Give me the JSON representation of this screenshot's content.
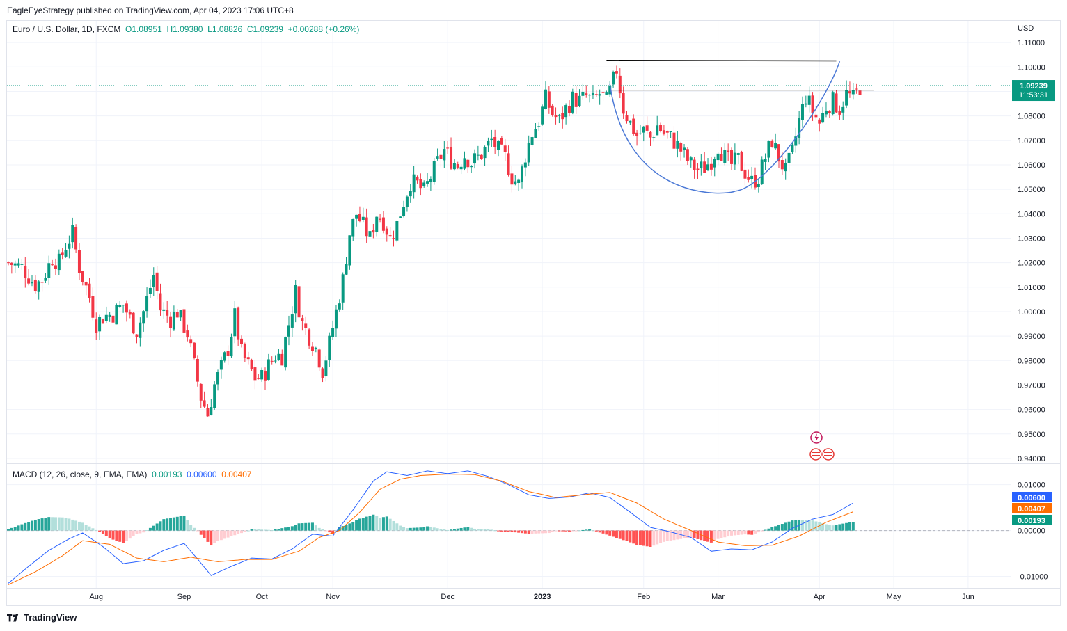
{
  "publisher": "EagleEyeStrategy published on TradingView.com, Apr 04, 2023 17:06 UTC+8",
  "legend": {
    "symbol": "Euro / U.S. Dollar, 1D, FXCM",
    "open": "O1.08951",
    "high": "H1.09380",
    "low": "L1.08826",
    "close": "C1.09239",
    "change": "+0.00288 (+0.26%)"
  },
  "currency": "USD",
  "price_badge": {
    "price": "1.09239",
    "countdown": "11:53:31",
    "color": "#089981"
  },
  "macd_legend": {
    "title": "MACD (12, 26, close, 9, EMA, EMA)",
    "hist": "0.00193",
    "macd": "0.00600",
    "signal": "0.00407"
  },
  "macd_badges": [
    {
      "value": "0.00600",
      "color": "#2962ff"
    },
    {
      "value": "0.00407",
      "color": "#ff6d00"
    },
    {
      "value": "0.00193",
      "color": "#089981"
    }
  ],
  "footer": "TradingView",
  "colors": {
    "up": "#089981",
    "down": "#f23645",
    "macd": "#2962ff",
    "signal": "#ff6d00",
    "hist_up": "#26a69a",
    "hist_up_light": "#b2dfdb",
    "hist_down": "#ff5252",
    "hist_down_light": "#ffcdd2",
    "grid": "#f0f3fa"
  },
  "chart_data": {
    "type": "candlestick",
    "price_axis": {
      "ticks": [
        "1.11000",
        "1.10000",
        "1.09000",
        "1.08000",
        "1.07000",
        "1.06000",
        "1.05000",
        "1.04000",
        "1.03000",
        "1.02000",
        "1.01000",
        "1.00000",
        "0.99000",
        "0.98000",
        "0.97000",
        "0.96000",
        "0.95000",
        "0.94000"
      ],
      "range": [
        0.938,
        1.116
      ]
    },
    "macd_axis": {
      "ticks": [
        "0.01000",
        "0.00000",
        "-0.01000"
      ],
      "range": [
        -0.0125,
        0.0145
      ]
    },
    "time_axis": [
      "Aug",
      "Sep",
      "Oct",
      "Nov",
      "Dec",
      "2023",
      "Feb",
      "Mar",
      "Apr",
      "May",
      "Jun"
    ],
    "price_path": [
      [
        0,
        1.02
      ],
      [
        4,
        1.018
      ],
      [
        8,
        1.011
      ],
      [
        10,
        1.013
      ],
      [
        13,
        1.022
      ],
      [
        15,
        1.02
      ],
      [
        17,
        1.027
      ],
      [
        19,
        1.032
      ],
      [
        21,
        1.018
      ],
      [
        24,
        1.006
      ],
      [
        26,
        0.995
      ],
      [
        28,
        0.998
      ],
      [
        31,
        0.999
      ],
      [
        34,
        1.003
      ],
      [
        36,
        0.997
      ],
      [
        38,
        0.992
      ],
      [
        40,
        1.0
      ],
      [
        43,
        1.015
      ],
      [
        45,
        1.001
      ],
      [
        48,
        0.997
      ],
      [
        50,
        1.0
      ],
      [
        53,
        0.991
      ],
      [
        55,
        0.978
      ],
      [
        57,
        0.965
      ],
      [
        59,
        0.958
      ],
      [
        61,
        0.97
      ],
      [
        63,
        0.977
      ],
      [
        65,
        0.985
      ],
      [
        67,
        0.998
      ],
      [
        69,
        0.983
      ],
      [
        71,
        0.978
      ],
      [
        73,
        0.973
      ],
      [
        75,
        0.973
      ],
      [
        77,
        0.978
      ],
      [
        79,
        0.982
      ],
      [
        81,
        0.982
      ],
      [
        83,
        0.995
      ],
      [
        85,
        1.008
      ],
      [
        87,
        0.995
      ],
      [
        89,
        0.99
      ],
      [
        91,
        0.985
      ],
      [
        93,
        0.976
      ],
      [
        95,
        0.987
      ],
      [
        97,
        1.0
      ],
      [
        99,
        1.013
      ],
      [
        101,
        1.032
      ],
      [
        103,
        1.04
      ],
      [
        105,
        1.035
      ],
      [
        107,
        1.03
      ],
      [
        109,
        1.04
      ],
      [
        111,
        1.037
      ],
      [
        113,
        1.03
      ],
      [
        115,
        1.036
      ],
      [
        117,
        1.045
      ],
      [
        119,
        1.053
      ],
      [
        121,
        1.052
      ],
      [
        123,
        1.049
      ],
      [
        125,
        1.055
      ],
      [
        127,
        1.061
      ],
      [
        129,
        1.066
      ],
      [
        131,
        1.062
      ],
      [
        133,
        1.06
      ],
      [
        135,
        1.064
      ],
      [
        137,
        1.061
      ],
      [
        139,
        1.063
      ],
      [
        141,
        1.066
      ],
      [
        143,
        1.07
      ],
      [
        145,
        1.066
      ],
      [
        147,
        1.063
      ],
      [
        149,
        1.055
      ],
      [
        151,
        1.052
      ],
      [
        153,
        1.064
      ],
      [
        155,
        1.073
      ],
      [
        157,
        1.078
      ],
      [
        159,
        1.087
      ],
      [
        161,
        1.081
      ],
      [
        163,
        1.078
      ],
      [
        165,
        1.083
      ],
      [
        167,
        1.087
      ],
      [
        169,
        1.086
      ],
      [
        171,
        1.088
      ],
      [
        173,
        1.086
      ],
      [
        175,
        1.089
      ],
      [
        177,
        1.086
      ],
      [
        178,
        1.09
      ],
      [
        180,
        1.099
      ],
      [
        182,
        1.083
      ],
      [
        184,
        1.077
      ],
      [
        186,
        1.072
      ],
      [
        188,
        1.074
      ],
      [
        190,
        1.071
      ],
      [
        192,
        1.076
      ],
      [
        194,
        1.073
      ],
      [
        196,
        1.071
      ],
      [
        198,
        1.068
      ],
      [
        200,
        1.064
      ],
      [
        202,
        1.06
      ],
      [
        204,
        1.058
      ],
      [
        206,
        1.059
      ],
      [
        208,
        1.062
      ],
      [
        210,
        1.068
      ],
      [
        212,
        1.063
      ],
      [
        214,
        1.06
      ],
      [
        216,
        1.062
      ],
      [
        218,
        1.057
      ],
      [
        220,
        1.053
      ],
      [
        222,
        1.055
      ],
      [
        224,
        1.063
      ],
      [
        226,
        1.07
      ],
      [
        228,
        1.063
      ],
      [
        230,
        1.057
      ],
      [
        232,
        1.065
      ],
      [
        234,
        1.078
      ],
      [
        236,
        1.088
      ],
      [
        238,
        1.082
      ],
      [
        240,
        1.077
      ],
      [
        242,
        1.084
      ],
      [
        244,
        1.086
      ],
      [
        246,
        1.083
      ],
      [
        248,
        1.089
      ],
      [
        250,
        1.087
      ],
      [
        252,
        1.092
      ]
    ],
    "macd_path": [
      [
        0,
        -0.0115
      ],
      [
        6,
        -0.0078
      ],
      [
        12,
        -0.0043
      ],
      [
        18,
        -0.0018
      ],
      [
        22,
        -0.0005
      ],
      [
        28,
        -0.0035
      ],
      [
        34,
        -0.0072
      ],
      [
        40,
        -0.0066
      ],
      [
        46,
        -0.0043
      ],
      [
        52,
        -0.0028
      ],
      [
        56,
        -0.0062
      ],
      [
        60,
        -0.0098
      ],
      [
        66,
        -0.0078
      ],
      [
        72,
        -0.006
      ],
      [
        78,
        -0.0062
      ],
      [
        84,
        -0.004
      ],
      [
        90,
        -0.0008
      ],
      [
        96,
        -0.0012
      ],
      [
        102,
        0.0045
      ],
      [
        108,
        0.0108
      ],
      [
        112,
        0.0128
      ],
      [
        118,
        0.012
      ],
      [
        124,
        0.013
      ],
      [
        130,
        0.0124
      ],
      [
        136,
        0.013
      ],
      [
        142,
        0.0118
      ],
      [
        148,
        0.01
      ],
      [
        154,
        0.0078
      ],
      [
        160,
        0.007
      ],
      [
        166,
        0.0073
      ],
      [
        172,
        0.0082
      ],
      [
        178,
        0.0072
      ],
      [
        184,
        0.004
      ],
      [
        190,
        0.0007
      ],
      [
        196,
        -0.0003
      ],
      [
        202,
        -0.0015
      ],
      [
        208,
        -0.0045
      ],
      [
        214,
        -0.004
      ],
      [
        220,
        -0.0042
      ],
      [
        226,
        -0.0025
      ],
      [
        232,
        0.0005
      ],
      [
        238,
        0.0025
      ],
      [
        244,
        0.0035
      ],
      [
        250,
        0.006
      ]
    ],
    "signal_path": [
      [
        0,
        -0.0118
      ],
      [
        8,
        -0.009
      ],
      [
        16,
        -0.0055
      ],
      [
        22,
        -0.0022
      ],
      [
        30,
        -0.003
      ],
      [
        38,
        -0.006
      ],
      [
        46,
        -0.0068
      ],
      [
        54,
        -0.0058
      ],
      [
        62,
        -0.0068
      ],
      [
        70,
        -0.0063
      ],
      [
        78,
        -0.0063
      ],
      [
        86,
        -0.0045
      ],
      [
        92,
        -0.0015
      ],
      [
        98,
        0.0
      ],
      [
        104,
        0.004
      ],
      [
        110,
        0.009
      ],
      [
        116,
        0.0112
      ],
      [
        122,
        0.012
      ],
      [
        130,
        0.0123
      ],
      [
        138,
        0.0122
      ],
      [
        146,
        0.0108
      ],
      [
        154,
        0.0085
      ],
      [
        162,
        0.0072
      ],
      [
        170,
        0.0078
      ],
      [
        178,
        0.0083
      ],
      [
        186,
        0.006
      ],
      [
        194,
        0.0025
      ],
      [
        202,
        0.0
      ],
      [
        210,
        -0.0025
      ],
      [
        218,
        -0.0033
      ],
      [
        226,
        -0.0032
      ],
      [
        234,
        -0.0012
      ],
      [
        242,
        0.0018
      ],
      [
        250,
        0.0041
      ]
    ],
    "resistance_level": 1.0905,
    "channel_top": [
      [
        177,
        1.1027
      ],
      [
        245,
        1.1025
      ]
    ],
    "cup_curve": {
      "start": [
        178,
        1.093
      ],
      "bottom": [
        215,
        1.0492
      ],
      "end": [
        246,
        1.1023
      ]
    },
    "neckline": [
      [
        178,
        1.0905
      ],
      [
        256,
        1.0905
      ]
    ]
  }
}
